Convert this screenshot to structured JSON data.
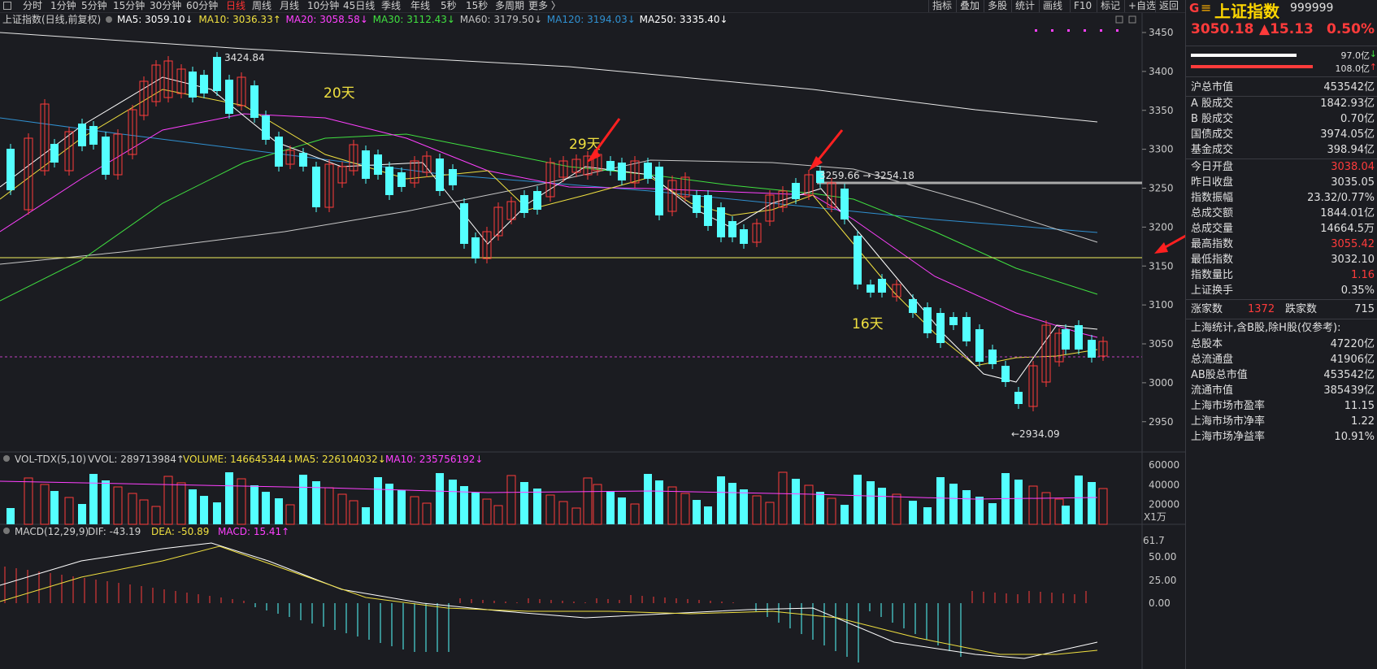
{
  "toolbar": {
    "icon": "grid-menu-icon",
    "tabs": [
      {
        "label": "分时",
        "active": false
      },
      {
        "label": "1分钟",
        "active": false
      },
      {
        "label": "5分钟",
        "active": false
      },
      {
        "label": "15分钟",
        "active": false
      },
      {
        "label": "30分钟",
        "active": false
      },
      {
        "label": "60分钟",
        "active": false
      },
      {
        "label": "日线",
        "active": true
      },
      {
        "label": "周线",
        "active": false
      },
      {
        "label": "月线",
        "active": false
      },
      {
        "label": "10分钟",
        "active": false
      },
      {
        "label": "45日线",
        "active": false
      },
      {
        "label": "季线",
        "active": false
      },
      {
        "label": "年线",
        "active": false
      },
      {
        "label": "5秒",
        "active": false
      },
      {
        "label": "15秒",
        "active": false
      },
      {
        "label": "多周期",
        "active": false
      },
      {
        "label": "更多 〉",
        "active": false
      }
    ],
    "right_buttons": [
      "指标",
      "叠加",
      "多股",
      "统计",
      "画线",
      "F10",
      "标记",
      "+自选",
      "返回"
    ]
  },
  "main_chart": {
    "title": "上证指数(日线,前复权)",
    "ma_labels": [
      {
        "text": "MA5: 3059.10",
        "arrow": "↓",
        "color": "#ffffff"
      },
      {
        "text": "MA10: 3036.33",
        "arrow": "↑",
        "color": "#f0e040"
      },
      {
        "text": "MA20: 3058.58",
        "arrow": "↓",
        "color": "#ff40ff"
      },
      {
        "text": "MA30: 3112.43",
        "arrow": "↓",
        "color": "#40e040"
      },
      {
        "text": "MA60: 3179.50",
        "arrow": "↓",
        "color": "#c0c0c0"
      },
      {
        "text": "MA120: 3194.03",
        "arrow": "↓",
        "color": "#3090d0"
      },
      {
        "text": "MA250: 3335.40",
        "arrow": "↓",
        "color": "#ffffff"
      }
    ],
    "y_axis": [
      "3450",
      "3400",
      "3350",
      "3300",
      "3250",
      "3200",
      "3150",
      "3100",
      "3050",
      "3000",
      "2950"
    ],
    "annotations": {
      "high": "3424.84",
      "low": "←2934.09",
      "mid": "3259.66 → 3254.18",
      "days_20": "20天",
      "days_29": "29天",
      "days_16": "16天"
    }
  },
  "volume": {
    "title": "VOL-TDX(5,10)",
    "vvol": "VVOL: 289713984",
    "volume": "VOLUME: 146645344",
    "ma5": "MA5: 226104032",
    "ma10": "MA10: 235756192",
    "y_axis": [
      "60000",
      "40000",
      "20000"
    ],
    "unit": "X1万"
  },
  "macd": {
    "title": "MACD(12,29,9)",
    "dif": "DIF: -43.19",
    "dea": "DEA: -50.89",
    "macd": "MACD: 15.41",
    "y_axis": [
      "61.7",
      "50.00",
      "25.00",
      "0.00"
    ]
  },
  "info_panel": {
    "logo": "G",
    "menu_icon": "≡",
    "name": "上证指数",
    "code": "999999",
    "price": "3050.18",
    "change": "▲15.13",
    "change_pct": "0.50%",
    "bar_val_1": "97.0亿",
    "bar_val_2": "108.0亿",
    "rows_a": [
      {
        "label": "沪总市值",
        "value": "453542亿",
        "color": "white"
      }
    ],
    "rows_b": [
      {
        "label": "A 股成交",
        "value": "1842.93亿",
        "color": "white"
      },
      {
        "label": "B 股成交",
        "value": "0.70亿",
        "color": "white"
      },
      {
        "label": "国债成交",
        "value": "3974.05亿",
        "color": "white"
      },
      {
        "label": "基金成交",
        "value": "398.94亿",
        "color": "white"
      }
    ],
    "rows_c": [
      {
        "label": "今日开盘",
        "value": "3038.04",
        "color": "red"
      },
      {
        "label": "昨日收盘",
        "value": "3035.05",
        "color": "white"
      },
      {
        "label": "指数振幅",
        "value": "23.32/0.77%",
        "color": "white"
      },
      {
        "label": "总成交额",
        "value": "1844.01亿",
        "color": "white"
      },
      {
        "label": "总成交量",
        "value": "14664.5万",
        "color": "white"
      },
      {
        "label": "最高指数",
        "value": "3055.42",
        "color": "red"
      },
      {
        "label": "最低指数",
        "value": "3032.10",
        "color": "white"
      },
      {
        "label": "指数量比",
        "value": "1.16",
        "color": "red"
      },
      {
        "label": "上证换手",
        "value": "0.35%",
        "color": "white"
      }
    ],
    "up_label": "涨家数",
    "up_count": "1372",
    "down_label": "跌家数",
    "down_count": "715",
    "stats_title": "上海统计,含B股,除H股(仅参考):",
    "rows_d": [
      {
        "label": "总股本",
        "value": "47220亿",
        "color": "white"
      },
      {
        "label": "总流通盘",
        "value": "41906亿",
        "color": "white"
      },
      {
        "label": "AB股总市值",
        "value": "453542亿",
        "color": "white"
      },
      {
        "label": "流通市值",
        "value": "385439亿",
        "color": "white"
      },
      {
        "label": "上海市场市盈率",
        "value": "11.15",
        "color": "white"
      },
      {
        "label": "上海市场市净率",
        "value": "1.22",
        "color": "white"
      },
      {
        "label": "上海市场净益率",
        "value": "10.91%",
        "color": "white"
      }
    ]
  },
  "colors": {
    "up": "#ff3b3b",
    "down": "#54ffff",
    "bg": "#1b1c21",
    "grid": "#3a3b42"
  }
}
